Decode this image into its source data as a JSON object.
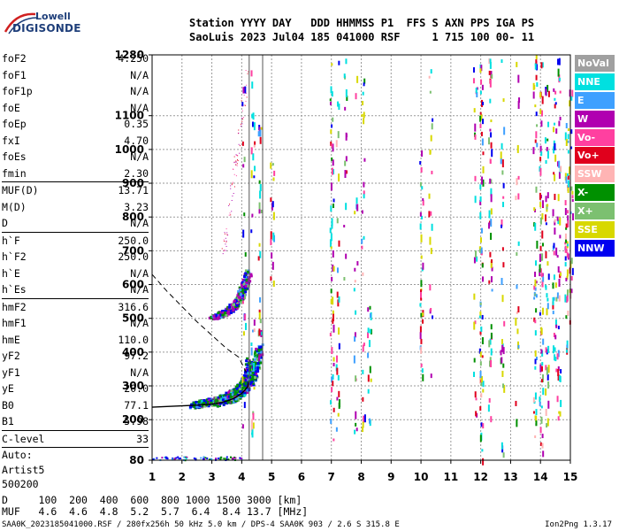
{
  "logo": {
    "line1": "Lowell",
    "line2": "DIGISONDE"
  },
  "header": {
    "line1": "Station YYYY DAY   DDD HHMMSS P1  FFS S AXN PPS IGA PS",
    "line2": "SaoLuis 2023 Jul04 185 041000 RSF     1 715 100 00- 11"
  },
  "params": {
    "group1": [
      {
        "name": "foF2",
        "value": "4.250"
      },
      {
        "name": "foF1",
        "value": "N/A"
      },
      {
        "name": "foF1p",
        "value": "N/A"
      },
      {
        "name": "foE",
        "value": "N/A"
      },
      {
        "name": "foEp",
        "value": "0.35"
      },
      {
        "name": "fxI",
        "value": "4.70"
      },
      {
        "name": "foEs",
        "value": "N/A"
      },
      {
        "name": "fmin",
        "value": "2.30"
      }
    ],
    "group2": [
      {
        "name": "MUF(D)",
        "value": "13.71"
      },
      {
        "name": "M(D)",
        "value": "3.23"
      },
      {
        "name": "D",
        "value": "N/A"
      }
    ],
    "group3": [
      {
        "name": "h`F",
        "value": "250.0"
      },
      {
        "name": "h`F2",
        "value": "250.0"
      },
      {
        "name": "h`E",
        "value": "N/A"
      },
      {
        "name": "h`Es",
        "value": "N/A"
      }
    ],
    "group4": [
      {
        "name": "hmF2",
        "value": "316.6"
      },
      {
        "name": "hmF1",
        "value": "N/A"
      },
      {
        "name": "hmE",
        "value": "110.0"
      },
      {
        "name": "yF2",
        "value": "97.2"
      },
      {
        "name": "yF1",
        "value": "N/A"
      },
      {
        "name": "yE",
        "value": "20.0"
      },
      {
        "name": "B0",
        "value": "77.1"
      },
      {
        "name": "B1",
        "value": "5.98"
      }
    ],
    "clevel": {
      "name": "C-level",
      "value": "33"
    },
    "auto": [
      "Auto:",
      "Artist5",
      "500200"
    ]
  },
  "muf_table": {
    "line1": "D     100  200  400  600  800 1000 1500 3000 [km]",
    "line2": "MUF   4.6  4.6  4.8  5.2  5.7  6.4  8.4 13.7 [MHz]"
  },
  "footer": {
    "left": "SAA0K_2023185041000.RSF / 280fx256h 50 kHz 5.0 km / DPS-4 SAA0K 903 / 2.6 S 315.8 E",
    "right": "Ion2Png 1.3.17"
  },
  "legend": [
    {
      "label": "NoVal",
      "color": "#a0a0a0"
    },
    {
      "label": "NNE",
      "color": "#00e0e0"
    },
    {
      "label": "E",
      "color": "#3ea0ff"
    },
    {
      "label": "W",
      "color": "#b000b0"
    },
    {
      "label": "Vo-",
      "color": "#ff40a0"
    },
    {
      "label": "Vo+",
      "color": "#e0001c"
    },
    {
      "label": "SSW",
      "color": "#ffb4b4"
    },
    {
      "label": "X-",
      "color": "#009000"
    },
    {
      "label": "X+",
      "color": "#7cc070"
    },
    {
      "label": "SSE",
      "color": "#d8d800"
    },
    {
      "label": "NNW",
      "color": "#0000f0"
    }
  ],
  "chart_data": {
    "type": "scatter",
    "title": "",
    "xlabel": "",
    "ylabel": "",
    "xlim": [
      1,
      15
    ],
    "ylim": [
      80,
      1280
    ],
    "x_ticks": [
      1,
      2,
      3,
      4,
      5,
      6,
      7,
      8,
      9,
      10,
      11,
      12,
      13,
      14,
      15
    ],
    "y_ticks": [
      80,
      200,
      300,
      400,
      500,
      600,
      700,
      800,
      900,
      1000,
      1100,
      1280
    ],
    "grid": true,
    "frequency_markers_mhz": [
      4.25,
      4.7
    ],
    "profile_curve": {
      "name": "profile",
      "points": [
        [
          1.0,
          237
        ],
        [
          1.5,
          239
        ],
        [
          2.0,
          241
        ],
        [
          2.5,
          243
        ],
        [
          3.0,
          246
        ],
        [
          3.3,
          250
        ],
        [
          3.6,
          258
        ],
        [
          3.8,
          266
        ],
        [
          4.0,
          278
        ],
        [
          4.1,
          287
        ],
        [
          4.2,
          298
        ],
        [
          4.25,
          317
        ]
      ]
    },
    "dashed_curve": {
      "name": "dashed",
      "points": [
        [
          1.0,
          630
        ],
        [
          1.5,
          580
        ],
        [
          2.0,
          535
        ],
        [
          2.5,
          490
        ],
        [
          3.0,
          450
        ],
        [
          3.5,
          410
        ],
        [
          3.9,
          385
        ],
        [
          4.15,
          340
        ]
      ]
    },
    "trace_clusters": [
      {
        "label": "F2 o-trace",
        "x": [
          2.3,
          2.6,
          2.9,
          3.2,
          3.5,
          3.8,
          4.0,
          4.15,
          4.25
        ],
        "y": [
          245,
          250,
          255,
          262,
          272,
          288,
          305,
          330,
          380
        ]
      },
      {
        "label": "F2 x-trace",
        "x": [
          3.0,
          3.3,
          3.6,
          3.9,
          4.1,
          4.3,
          4.45,
          4.55
        ],
        "y": [
          250,
          256,
          264,
          278,
          296,
          322,
          360,
          420
        ]
      },
      {
        "label": "F2 multihop",
        "x": [
          3.0,
          3.3,
          3.6,
          3.8,
          4.0,
          4.2
        ],
        "y": [
          505,
          515,
          530,
          550,
          585,
          640
        ]
      }
    ]
  }
}
